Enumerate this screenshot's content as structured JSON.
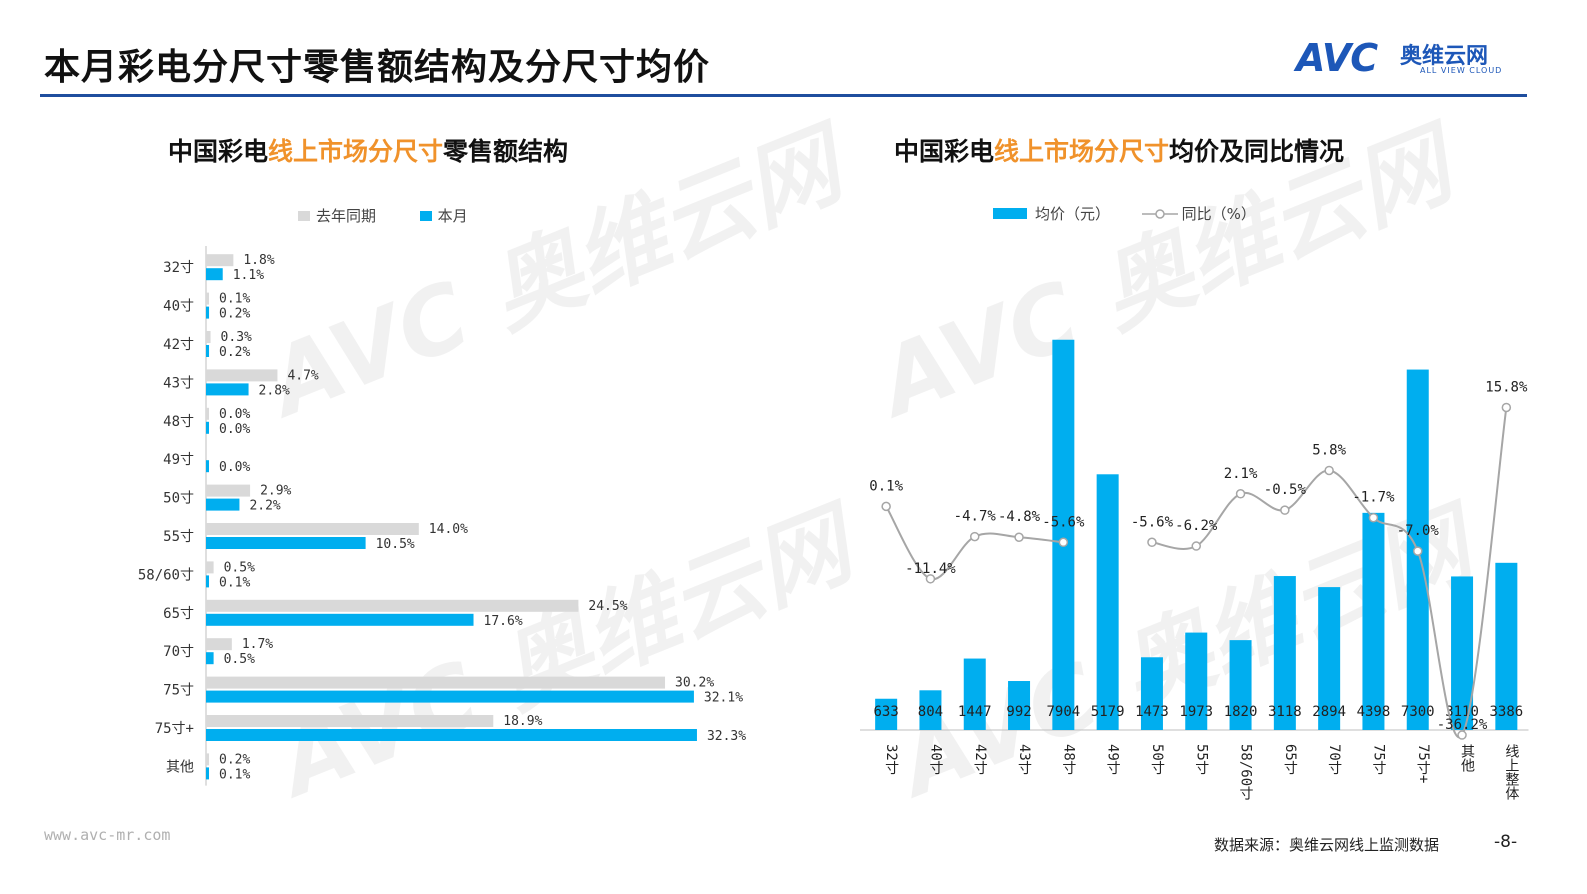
{
  "header": {
    "title": "本月彩电分尺寸零售额结构及分尺寸均价",
    "logo": {
      "mark": "AVC",
      "cn": "奥维云网",
      "en": "ALL VIEW CLOUD"
    }
  },
  "colors": {
    "accent_blue": "#00aeef",
    "gray": "#d9d9d9",
    "title_orange": "#f0922b",
    "rule_blue": "#1f4e9e"
  },
  "footer": {
    "url": "www.avc-mr.com",
    "source": "数据来源：奥维云网线上监测数据",
    "page": "-8-"
  },
  "chart_data": [
    {
      "type": "bar",
      "orientation": "horizontal",
      "title_prefix": "中国彩电",
      "title_highlight": "线上市场分尺寸",
      "title_suffix": "零售额结构",
      "legend_position": "top",
      "categories": [
        "32寸",
        "40寸",
        "42寸",
        "43寸",
        "48寸",
        "49寸",
        "50寸",
        "55寸",
        "58/60寸",
        "65寸",
        "70寸",
        "75寸",
        "75寸+",
        "其他"
      ],
      "series": [
        {
          "name": "去年同期",
          "color": "#d9d9d9",
          "values": [
            1.8,
            0.1,
            0.3,
            4.7,
            0.0,
            null,
            2.9,
            14.0,
            0.5,
            24.5,
            1.7,
            30.2,
            18.9,
            0.2
          ],
          "labels": [
            "1.8%",
            "0.1%",
            "0.3%",
            "4.7%",
            "0.0%",
            "",
            "2.9%",
            "14.0%",
            "0.5%",
            "24.5%",
            "1.7%",
            "30.2%",
            "18.9%",
            "0.2%"
          ]
        },
        {
          "name": "本月",
          "color": "#00aeef",
          "values": [
            1.1,
            0.2,
            0.2,
            2.8,
            0.0,
            0.0,
            2.2,
            10.5,
            0.1,
            17.6,
            0.5,
            32.1,
            32.3,
            0.1
          ],
          "labels": [
            "1.1%",
            "0.2%",
            "0.2%",
            "2.8%",
            "0.0%",
            "0.0%",
            "2.2%",
            "10.5%",
            "0.1%",
            "17.6%",
            "0.5%",
            "32.1%",
            "32.3%",
            "0.1%"
          ]
        }
      ]
    },
    {
      "type": "bar+line",
      "title_prefix": "中国彩电",
      "title_highlight": "线上市场分尺寸",
      "title_suffix": "均价及同比情况",
      "legend_position": "top",
      "categories": [
        "32寸",
        "40寸",
        "42寸",
        "43寸",
        "48寸",
        "49寸",
        "50寸",
        "55寸",
        "58/60寸",
        "65寸",
        "70寸",
        "75寸",
        "75寸+",
        "其他",
        "线上整体"
      ],
      "bar_series": {
        "name": "均价（元）",
        "color": "#00aeef",
        "values": [
          633,
          804,
          1447,
          992,
          7904,
          5179,
          1473,
          1973,
          1820,
          3118,
          2894,
          4398,
          7300,
          3110,
          3386
        ]
      },
      "line_series": {
        "name": "同比（%）",
        "color": "#a6a6a6",
        "values": [
          0.1,
          -11.4,
          -4.7,
          -4.8,
          -5.6,
          null,
          -5.6,
          -6.2,
          2.1,
          -0.5,
          5.8,
          -1.7,
          -7.0,
          -36.2,
          15.8
        ],
        "labels": [
          "0.1%",
          "-11.4%",
          "-4.7%",
          "-4.8%",
          "-5.6%",
          "",
          "-5.6%",
          "-6.2%",
          "2.1%",
          "-0.5%",
          "5.8%",
          "-1.7%",
          "-7.0%",
          "-36.2%",
          "15.8%"
        ]
      }
    }
  ]
}
